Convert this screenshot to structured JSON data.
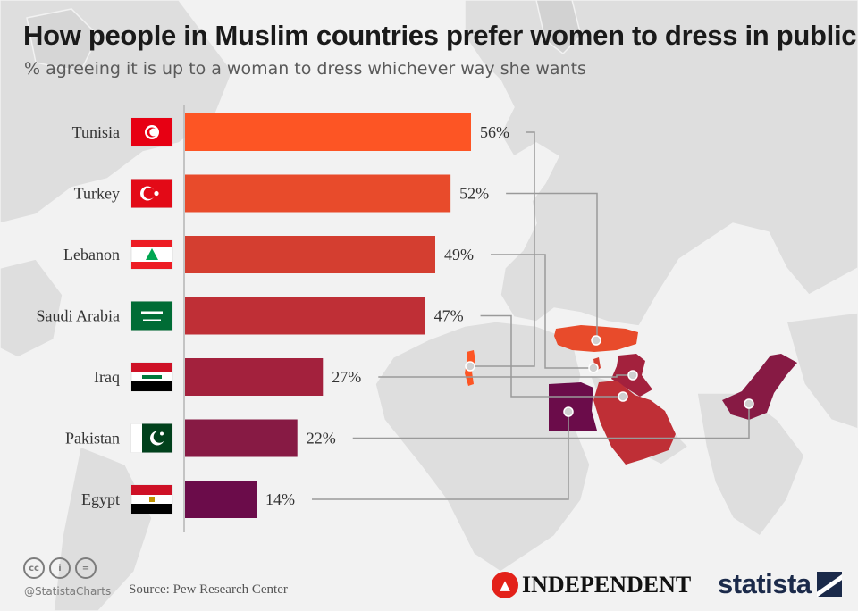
{
  "title": "How people in Muslim countries prefer women to dress in public",
  "subtitle": "% agreeing it is up to a woman to dress whichever way she wants",
  "footer": {
    "handle": "@StatistaCharts",
    "source": "Source: Pew Research Center",
    "cc_icons": [
      "creative-commons-icon",
      "attribution-icon",
      "no-derivatives-icon"
    ],
    "cc_glyphs": [
      "cc",
      "i",
      "="
    ]
  },
  "logos": {
    "independent": "INDEPENDENT",
    "statista": "statista"
  },
  "colors": {
    "background": "#f2f2f2",
    "map_land": "#dedede",
    "leader_lines": "#9a9a9a",
    "axis": "#b5b5b5"
  },
  "chart_data": {
    "type": "bar",
    "orientation": "horizontal",
    "title": "How people in Muslim countries prefer women to dress in public",
    "subtitle": "% agreeing it is up to a woman to dress whichever way she wants",
    "unit": "%",
    "categories": [
      "Tunisia",
      "Turkey",
      "Lebanon",
      "Saudi Arabia",
      "Iraq",
      "Pakistan",
      "Egypt"
    ],
    "values": [
      56,
      52,
      49,
      47,
      27,
      22,
      14
    ],
    "labels": [
      "56%",
      "52%",
      "49%",
      "47%",
      "27%",
      "22%",
      "14%"
    ],
    "bar_colors": [
      "#fd5524",
      "#e84b2b",
      "#d43e30",
      "#bf2f36",
      "#a3213d",
      "#871a44",
      "#6b0c4a"
    ],
    "flags": [
      "tunisia-flag-icon",
      "turkey-flag-icon",
      "lebanon-flag-icon",
      "saudi-arabia-flag-icon",
      "iraq-flag-icon",
      "pakistan-flag-icon",
      "egypt-flag-icon"
    ],
    "xlim": [
      0,
      56
    ],
    "grid": false,
    "legend": "none"
  }
}
